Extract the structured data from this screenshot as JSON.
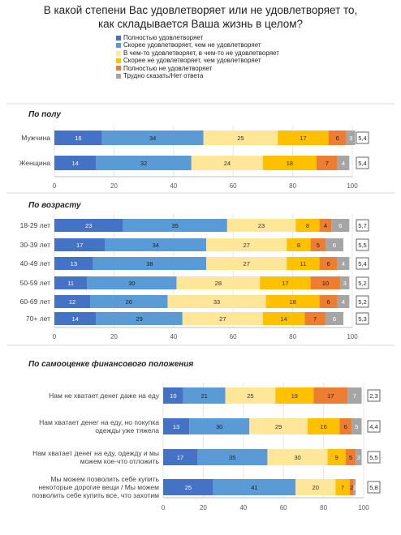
{
  "title_line1": "В какой степени Вас удовлетворяет или не удовлетворяет то,",
  "title_line2": "как складывается Ваша жизнь в целом?",
  "legend": [
    {
      "label": "Полностью удовлетворяет",
      "color": "#4472C4"
    },
    {
      "label": "Скорее удовлетворяет, чем не удовлетворяет",
      "color": "#5B9BD5"
    },
    {
      "label": "В чем-то удовлетворяет, в чем-то не удовлетворяет",
      "color": "#FFE699"
    },
    {
      "label": "Скорее не удовлетворяет, чем удовлетворяет",
      "color": "#FFC000"
    },
    {
      "label": "Полностью не удовлетворяет",
      "color": "#ED7D31"
    },
    {
      "label": "Трудно сказать/Нет ответа",
      "color": "#A5A5A5"
    }
  ],
  "chart_data": [
    {
      "type": "bar",
      "orientation": "horizontal",
      "stacked": true,
      "title": "По полу",
      "categories": [
        "Мужчина",
        "Женщина"
      ],
      "series_values": [
        [
          16,
          34,
          25,
          17,
          6,
          3
        ],
        [
          14,
          32,
          24,
          18,
          7,
          4
        ]
      ],
      "index": [
        "5,4",
        "5,4"
      ],
      "xlim": [
        0,
        100
      ],
      "xticks": [
        "0",
        "20",
        "40",
        "60",
        "80",
        "100"
      ]
    },
    {
      "type": "bar",
      "orientation": "horizontal",
      "stacked": true,
      "title": "По возрасту",
      "categories": [
        "18-29 лет",
        "30-39 лет",
        "40-49 лет",
        "50-59 лет",
        "60-69 лет",
        "70+ лет"
      ],
      "series_values": [
        [
          23,
          35,
          23,
          8,
          4,
          6
        ],
        [
          17,
          34,
          27,
          8,
          5,
          6
        ],
        [
          13,
          38,
          27,
          11,
          6,
          4
        ],
        [
          11,
          30,
          28,
          17,
          10,
          3
        ],
        [
          12,
          26,
          33,
          18,
          6,
          4
        ],
        [
          14,
          29,
          27,
          14,
          7,
          6
        ]
      ],
      "index": [
        "5,7",
        "5,5",
        "5,4",
        "5,2",
        "5,2",
        "5,3"
      ],
      "xlim": [
        0,
        100
      ],
      "xticks": [
        "0",
        "20",
        "40",
        "60",
        "80",
        "100"
      ]
    },
    {
      "type": "bar",
      "orientation": "horizontal",
      "stacked": true,
      "title": "По самооценке финансового положения",
      "categories": [
        "Нам не хватает денег даже на еду",
        "Нам хватает денег на еду, но покупка одежды уже тяжела",
        "Нам хватает денег на еду, одежду и мы можем кое-что отложить",
        "Мы можем позволить себе купить некоторые дорогие вещи / Мы можем позволить себе купить все, что захотим"
      ],
      "category_lines": [
        [
          "Нам не хватает денег даже на еду"
        ],
        [
          "Нам хватает денег на еду, но покупка",
          "одежды уже тяжела"
        ],
        [
          "Нам хватает денег на еду, одежду и мы",
          "можем кое-что отложить"
        ],
        [
          "Мы можем позволить себе купить",
          "некоторые дорогие вещи / Мы можем",
          "позволить себе купить все, что захотим"
        ]
      ],
      "series_values": [
        [
          10,
          21,
          25,
          19,
          17,
          7
        ],
        [
          13,
          30,
          29,
          16,
          6,
          5
        ],
        [
          17,
          35,
          30,
          9,
          5,
          3
        ],
        [
          25,
          41,
          20,
          7,
          2,
          1
        ]
      ],
      "index": [
        "2,3",
        "4,4",
        "5,5",
        "5,8"
      ],
      "xlim": [
        0,
        100
      ],
      "xticks": [
        "0",
        "20",
        "40",
        "60",
        "80",
        "100"
      ]
    }
  ]
}
